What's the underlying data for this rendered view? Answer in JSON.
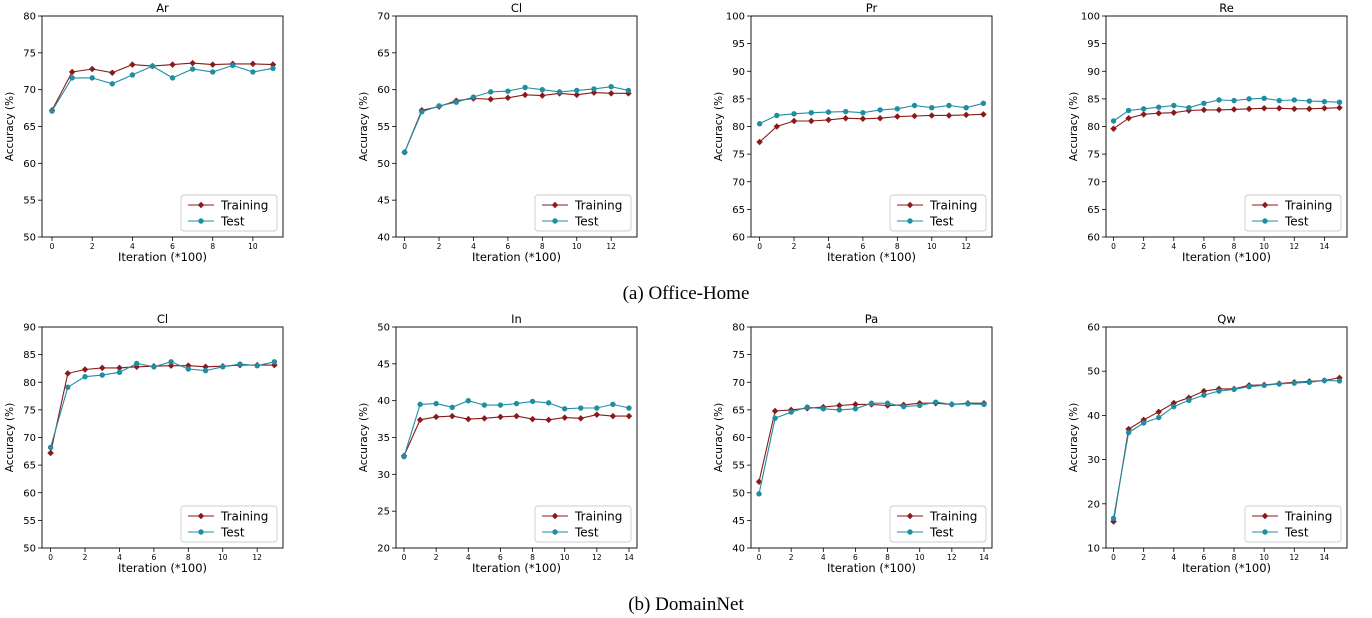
{
  "legend_labels": {
    "training": "Training",
    "test": "Test"
  },
  "colors": {
    "training": "#8b1a1a",
    "test": "#1f8ea3"
  },
  "captions": {
    "a": "(a) Office-Home",
    "b": "(b) DomainNet"
  },
  "chart_data": [
    {
      "type": "line",
      "title": "Ar",
      "xlabel": "Iteration (*100)",
      "ylabel": "Accuracy (%)",
      "ylim": [
        50,
        80
      ],
      "yticks": [
        50,
        55,
        60,
        65,
        70,
        75,
        80
      ],
      "xlim": [
        -0.5,
        11.5
      ],
      "xticks": [
        0,
        2,
        4,
        6,
        8,
        10
      ],
      "grid": false,
      "legend": "lower-right",
      "x": [
        0,
        1,
        2,
        3,
        4,
        5,
        6,
        7,
        8,
        9,
        10,
        11
      ],
      "series": [
        {
          "name": "Training",
          "values": [
            67.2,
            72.4,
            72.8,
            72.3,
            73.4,
            73.2,
            73.4,
            73.6,
            73.4,
            73.5,
            73.5,
            73.4
          ]
        },
        {
          "name": "Test",
          "values": [
            67.1,
            71.6,
            71.6,
            70.8,
            72.0,
            73.2,
            71.6,
            72.8,
            72.4,
            73.3,
            72.4,
            72.9
          ]
        }
      ]
    },
    {
      "type": "line",
      "title": "Cl",
      "xlabel": "Iteration (*100)",
      "ylabel": "Accuracy (%)",
      "ylim": [
        40,
        70
      ],
      "yticks": [
        40,
        45,
        50,
        55,
        60,
        65,
        70
      ],
      "xlim": [
        -0.5,
        13.5
      ],
      "xticks": [
        0,
        2,
        4,
        6,
        8,
        10,
        12
      ],
      "grid": false,
      "legend": "lower-right",
      "x": [
        0,
        1,
        2,
        3,
        4,
        5,
        6,
        7,
        8,
        9,
        10,
        11,
        12,
        13
      ],
      "series": [
        {
          "name": "Training",
          "values": [
            51.5,
            57.2,
            57.7,
            58.5,
            58.8,
            58.7,
            58.9,
            59.3,
            59.2,
            59.5,
            59.3,
            59.6,
            59.5,
            59.5
          ]
        },
        {
          "name": "Test",
          "values": [
            51.5,
            57.0,
            57.8,
            58.3,
            59.0,
            59.7,
            59.8,
            60.3,
            60.0,
            59.7,
            59.9,
            60.1,
            60.4,
            59.9
          ]
        }
      ]
    },
    {
      "type": "line",
      "title": "Pr",
      "xlabel": "Iteration (*100)",
      "ylabel": "Accuracy (%)",
      "ylim": [
        60,
        100
      ],
      "yticks": [
        60,
        65,
        70,
        75,
        80,
        85,
        90,
        95,
        100
      ],
      "xlim": [
        -0.5,
        13.5
      ],
      "xticks": [
        0,
        2,
        4,
        6,
        8,
        10,
        12
      ],
      "grid": false,
      "legend": "lower-right",
      "x": [
        0,
        1,
        2,
        3,
        4,
        5,
        6,
        7,
        8,
        9,
        10,
        11,
        12,
        13
      ],
      "series": [
        {
          "name": "Training",
          "values": [
            77.2,
            80.0,
            81.0,
            81.0,
            81.2,
            81.5,
            81.4,
            81.5,
            81.8,
            81.9,
            82.0,
            82.0,
            82.1,
            82.2
          ]
        },
        {
          "name": "Test",
          "values": [
            80.5,
            82.0,
            82.3,
            82.5,
            82.6,
            82.7,
            82.5,
            83.0,
            83.2,
            83.8,
            83.4,
            83.8,
            83.4,
            84.2
          ]
        }
      ]
    },
    {
      "type": "line",
      "title": "Re",
      "xlabel": "Iteration (*100)",
      "ylabel": "Accuracy (%)",
      "ylim": [
        60,
        100
      ],
      "yticks": [
        60,
        65,
        70,
        75,
        80,
        85,
        90,
        95,
        100
      ],
      "xlim": [
        -0.5,
        15.5
      ],
      "xticks": [
        0,
        2,
        4,
        6,
        8,
        10,
        12,
        14
      ],
      "grid": false,
      "legend": "lower-right",
      "x": [
        0,
        1,
        2,
        3,
        4,
        5,
        6,
        7,
        8,
        9,
        10,
        11,
        12,
        13,
        14,
        15
      ],
      "series": [
        {
          "name": "Training",
          "values": [
            79.6,
            81.5,
            82.2,
            82.4,
            82.5,
            82.9,
            83.0,
            83.0,
            83.1,
            83.2,
            83.3,
            83.3,
            83.2,
            83.2,
            83.3,
            83.4
          ]
        },
        {
          "name": "Test",
          "values": [
            81.0,
            82.9,
            83.2,
            83.5,
            83.8,
            83.4,
            84.2,
            84.8,
            84.7,
            85.0,
            85.1,
            84.7,
            84.8,
            84.6,
            84.5,
            84.4
          ]
        }
      ]
    },
    {
      "type": "line",
      "title": "Cl",
      "xlabel": "Iteration (*100)",
      "ylabel": "Accuracy (%)",
      "ylim": [
        50,
        90
      ],
      "yticks": [
        50,
        55,
        60,
        65,
        70,
        75,
        80,
        85,
        90
      ],
      "xlim": [
        -0.5,
        13.5
      ],
      "xticks": [
        0,
        2,
        4,
        6,
        8,
        10,
        12
      ],
      "grid": false,
      "legend": "lower-right",
      "x": [
        0,
        1,
        2,
        3,
        4,
        5,
        6,
        7,
        8,
        9,
        10,
        11,
        12,
        13
      ],
      "series": [
        {
          "name": "Training",
          "values": [
            67.2,
            81.6,
            82.3,
            82.6,
            82.6,
            82.8,
            82.9,
            83.0,
            83.0,
            82.8,
            82.9,
            83.1,
            83.1,
            83.1
          ]
        },
        {
          "name": "Test",
          "values": [
            68.2,
            79.1,
            81.0,
            81.3,
            81.8,
            83.4,
            82.8,
            83.7,
            82.4,
            82.1,
            82.8,
            83.3,
            83.0,
            83.7
          ]
        }
      ]
    },
    {
      "type": "line",
      "title": "In",
      "xlabel": "Iteration (*100)",
      "ylabel": "Accuracy (%)",
      "ylim": [
        20,
        50
      ],
      "yticks": [
        20,
        25,
        30,
        35,
        40,
        45,
        50
      ],
      "xlim": [
        -0.5,
        14.5
      ],
      "xticks": [
        0,
        2,
        4,
        6,
        8,
        10,
        12,
        14
      ],
      "grid": false,
      "legend": "lower-right",
      "x": [
        0,
        1,
        2,
        3,
        4,
        5,
        6,
        7,
        8,
        9,
        10,
        11,
        12,
        13,
        14
      ],
      "series": [
        {
          "name": "Training",
          "values": [
            32.5,
            37.4,
            37.8,
            37.9,
            37.5,
            37.6,
            37.8,
            37.9,
            37.5,
            37.4,
            37.7,
            37.6,
            38.1,
            37.9,
            37.9
          ]
        },
        {
          "name": "Test",
          "values": [
            32.4,
            39.5,
            39.6,
            39.1,
            40.0,
            39.4,
            39.4,
            39.6,
            39.9,
            39.7,
            38.9,
            39.0,
            39.0,
            39.5,
            39.0
          ]
        }
      ]
    },
    {
      "type": "line",
      "title": "Pa",
      "xlabel": "Iteration (*100)",
      "ylabel": "Accuracy (%)",
      "ylim": [
        40,
        80
      ],
      "yticks": [
        40,
        45,
        50,
        55,
        60,
        65,
        70,
        75,
        80
      ],
      "xlim": [
        -0.5,
        14.5
      ],
      "xticks": [
        0,
        2,
        4,
        6,
        8,
        10,
        12,
        14
      ],
      "grid": false,
      "legend": "lower-right",
      "x": [
        0,
        1,
        2,
        3,
        4,
        5,
        6,
        7,
        8,
        9,
        10,
        11,
        12,
        13,
        14
      ],
      "series": [
        {
          "name": "Training",
          "values": [
            52.0,
            64.8,
            65.0,
            65.3,
            65.5,
            65.8,
            66.0,
            66.0,
            65.8,
            65.9,
            66.2,
            66.2,
            66.0,
            66.2,
            66.2
          ]
        },
        {
          "name": "Test",
          "values": [
            49.8,
            63.5,
            64.6,
            65.5,
            65.2,
            65.0,
            65.2,
            66.2,
            66.2,
            65.6,
            65.8,
            66.4,
            66.0,
            66.1,
            66.0
          ]
        }
      ]
    },
    {
      "type": "line",
      "title": "Qw",
      "xlabel": "Iteration (*100)",
      "ylabel": "Accuracy (%)",
      "ylim": [
        10,
        60
      ],
      "yticks": [
        10,
        20,
        30,
        40,
        50,
        60
      ],
      "xlim": [
        -0.5,
        15.5
      ],
      "xticks": [
        0,
        2,
        4,
        6,
        8,
        10,
        12,
        14
      ],
      "grid": false,
      "legend": "lower-right",
      "x": [
        0,
        1,
        2,
        3,
        4,
        5,
        6,
        7,
        8,
        9,
        10,
        11,
        12,
        13,
        14,
        15
      ],
      "series": [
        {
          "name": "Training",
          "values": [
            16.0,
            36.9,
            39.0,
            40.8,
            42.8,
            44.0,
            45.5,
            46.0,
            46.0,
            46.8,
            46.9,
            47.2,
            47.5,
            47.7,
            47.9,
            48.5
          ]
        },
        {
          "name": "Test",
          "values": [
            16.7,
            36.1,
            38.3,
            39.5,
            42.0,
            43.4,
            44.6,
            45.5,
            45.9,
            46.5,
            46.8,
            47.1,
            47.3,
            47.5,
            47.9,
            47.8
          ]
        }
      ]
    }
  ]
}
